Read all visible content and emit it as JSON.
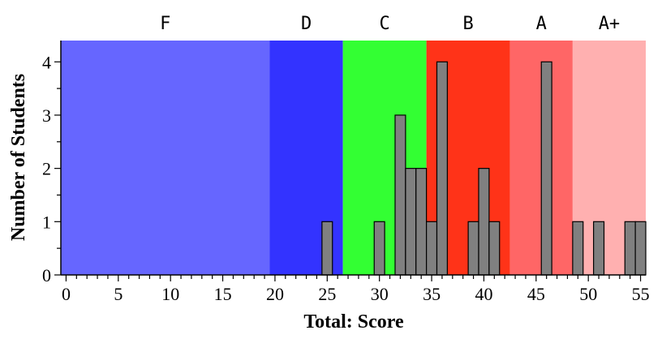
{
  "chart_data": {
    "type": "bar",
    "xlabel": "Total: Score",
    "ylabel": "Number of Students",
    "xlim": [
      -0.5,
      55.5
    ],
    "ylim": [
      0,
      4.4
    ],
    "x_ticks": [
      0,
      5,
      10,
      15,
      20,
      25,
      30,
      35,
      40,
      45,
      50,
      55
    ],
    "y_ticks": [
      0,
      1,
      2,
      3,
      4
    ],
    "bar_color": "#808080",
    "grade_bands": [
      {
        "label": "F",
        "start": -0.5,
        "end": 19.5,
        "color": "#6666ff"
      },
      {
        "label": "D",
        "start": 19.5,
        "end": 26.5,
        "color": "#3333ff"
      },
      {
        "label": "C",
        "start": 26.5,
        "end": 34.5,
        "color": "#33ff33"
      },
      {
        "label": "B",
        "start": 34.5,
        "end": 42.5,
        "color": "#ff3318"
      },
      {
        "label": "A",
        "start": 42.5,
        "end": 48.5,
        "color": "#ff6666"
      },
      {
        "label": "A+",
        "start": 48.5,
        "end": 55.5,
        "color": "#ffb0b0"
      }
    ],
    "bars": [
      {
        "x": 25,
        "count": 1
      },
      {
        "x": 30,
        "count": 1
      },
      {
        "x": 32,
        "count": 3
      },
      {
        "x": 33,
        "count": 2
      },
      {
        "x": 34,
        "count": 2
      },
      {
        "x": 35,
        "count": 1
      },
      {
        "x": 36,
        "count": 4
      },
      {
        "x": 39,
        "count": 1
      },
      {
        "x": 40,
        "count": 2
      },
      {
        "x": 41,
        "count": 1
      },
      {
        "x": 46,
        "count": 4
      },
      {
        "x": 49,
        "count": 1
      },
      {
        "x": 51,
        "count": 1
      },
      {
        "x": 54,
        "count": 1
      },
      {
        "x": 55,
        "count": 1
      }
    ]
  }
}
